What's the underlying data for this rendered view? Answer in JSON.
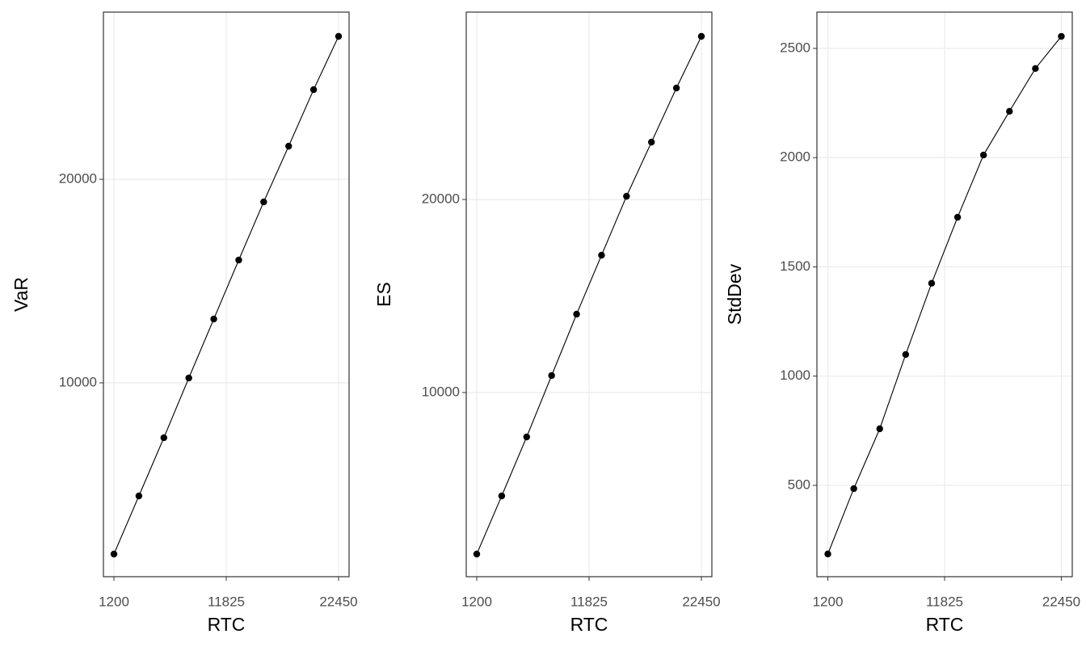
{
  "chart_data": [
    {
      "type": "line",
      "x_label": "RTC",
      "y_label": "VaR",
      "x": [
        1200,
        3561.11,
        5922.22,
        8283.33,
        10644.44,
        13005.56,
        15366.67,
        17727.78,
        20088.89,
        22450
      ],
      "values": [
        1587,
        4444,
        7302,
        10238,
        13135,
        16032,
        18889,
        21627,
        24405,
        27024
      ],
      "xlim": [
        206,
        23444
      ],
      "ylim": [
        476,
        28214
      ],
      "xticks": [
        1200,
        11825,
        22450
      ],
      "yticks": [
        10000,
        20000
      ],
      "grid": true,
      "color": "#000000"
    },
    {
      "type": "line",
      "x_label": "RTC",
      "y_label": "ES",
      "x": [
        1200,
        3561.11,
        5922.22,
        8283.33,
        10644.44,
        13005.56,
        15366.67,
        17727.78,
        20088.89,
        22450
      ],
      "values": [
        1632,
        4644,
        7699,
        10879,
        14059,
        17113,
        20167,
        22971,
        25774,
        28452
      ],
      "xlim": [
        206,
        23444
      ],
      "ylim": [
        460,
        29707
      ],
      "xticks": [
        1200,
        11825,
        22450
      ],
      "yticks": [
        10000,
        20000
      ],
      "grid": true,
      "color": "#000000"
    },
    {
      "type": "line",
      "x_label": "RTC",
      "y_label": "StdDev",
      "x": [
        1200,
        3561.11,
        5922.22,
        8283.33,
        10644.44,
        13005.56,
        15366.67,
        17727.78,
        20088.89,
        22450
      ],
      "values": [
        186,
        485,
        759,
        1099,
        1425,
        1727,
        2012,
        2212,
        2408,
        2555
      ],
      "xlim": [
        206,
        23444
      ],
      "ylim": [
        82,
        2666
      ],
      "xticks": [
        1200,
        11825,
        22450
      ],
      "yticks": [
        500,
        1000,
        1500,
        2000,
        2500
      ],
      "grid": true,
      "color": "#000000"
    }
  ]
}
